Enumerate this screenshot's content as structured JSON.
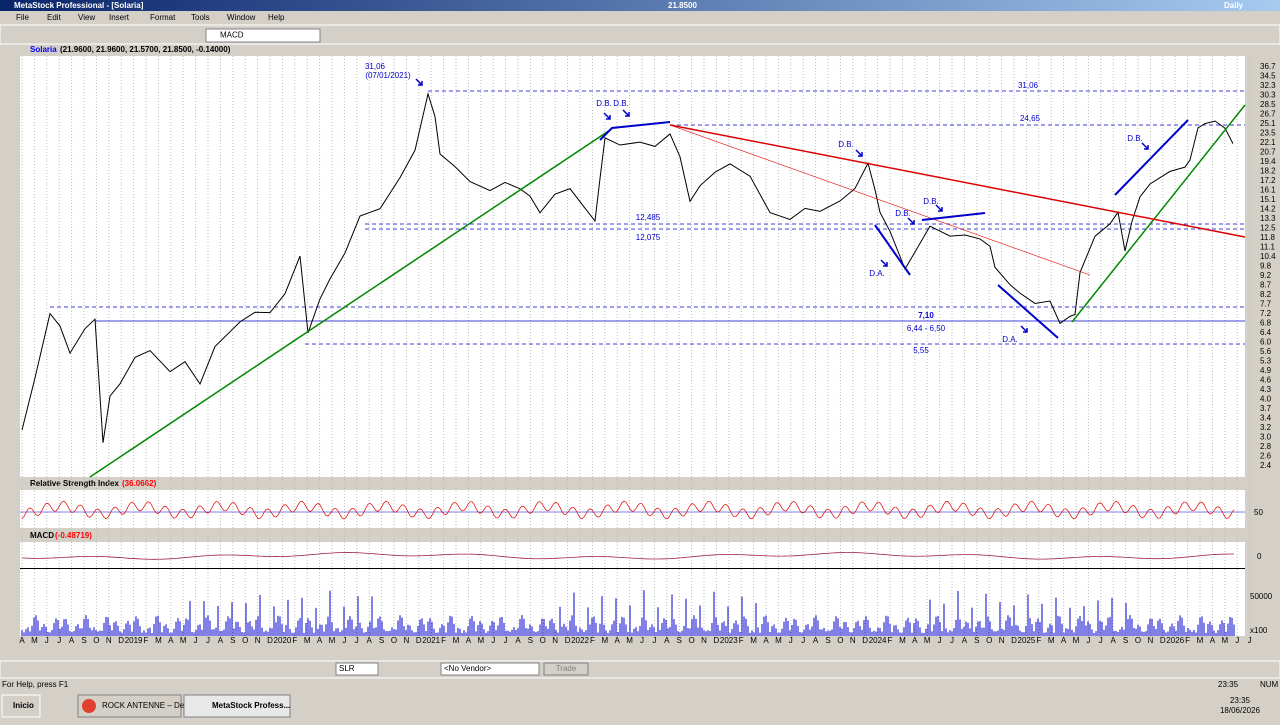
{
  "window": {
    "title": "MetaStock Professional - [Solaria]",
    "last_price": "21.8500",
    "period": "Daily"
  },
  "menu": [
    "File",
    "Edit",
    "View",
    "Insert",
    "Format",
    "Tools",
    "Window",
    "Help"
  ],
  "toolbar": {
    "indicator": "MACD"
  },
  "price_pane": {
    "symbol": "Solaria",
    "header": "(21.9600, 21.9600, 21.5700, 21.8500, -0.14000)",
    "axis": [
      "36.7",
      "34.5",
      "32.3",
      "30.3",
      "28.5",
      "26.7",
      "25.1",
      "23.5",
      "22.1",
      "20.7",
      "19.4",
      "18.2",
      "17.2",
      "16.1",
      "15.1",
      "14.2",
      "13.3",
      "12.5",
      "11.8",
      "11.1",
      "10.4",
      "9.8",
      "9.2",
      "8.7",
      "8.2",
      "7.7",
      "7.2",
      "6.8",
      "6.4",
      "6.0",
      "5.6",
      "5.3",
      "4.9",
      "4.6",
      "4.3",
      "4.0",
      "3.7",
      "3.4",
      "3.2",
      "3.0",
      "2.8",
      "2.6",
      "2.4"
    ],
    "annotations": [
      "31,06",
      "(07/01/2021)",
      "D.B.",
      "D.B.",
      "12,485",
      "12,075",
      "D.B.",
      "D.B.",
      "D.B.",
      "D.A.",
      "7,10",
      "6,44 - 6,50",
      "5,55",
      "D.A.",
      "D.B.",
      "31,06",
      "24,65"
    ]
  },
  "rsi_pane": {
    "name": "Relative Strength Index",
    "value": "(36.0662)",
    "axis": "50"
  },
  "macd_pane": {
    "name": "MACD",
    "value": "(-0.48719)",
    "axis": "0"
  },
  "volume_pane": {
    "axis": "50000",
    "scale": "x100"
  },
  "x_axis": [
    "A",
    "M",
    "J",
    "J",
    "A",
    "S",
    "O",
    "N",
    "D",
    "2019",
    "F",
    "M",
    "A",
    "M",
    "J",
    "J",
    "A",
    "S",
    "O",
    "N",
    "D",
    "2020",
    "F",
    "M",
    "A",
    "M",
    "J",
    "J",
    "A",
    "S",
    "O",
    "N",
    "D",
    "2021",
    "F",
    "M",
    "A",
    "M",
    "J",
    "J",
    "A",
    "S",
    "O",
    "N",
    "D",
    "2022",
    "F",
    "M",
    "A",
    "M",
    "J",
    "J",
    "A",
    "S",
    "O",
    "N",
    "D",
    "2023",
    "F",
    "M",
    "A",
    "M",
    "J",
    "J",
    "A",
    "S",
    "O",
    "N",
    "D",
    "2024",
    "F",
    "M",
    "A",
    "M",
    "J",
    "J",
    "A",
    "S",
    "O",
    "N",
    "D",
    "2025",
    "F",
    "M",
    "A",
    "M",
    "J",
    "J",
    "A",
    "S",
    "O",
    "N",
    "D",
    "2026",
    "F",
    "M",
    "A",
    "M",
    "J",
    "J"
  ],
  "bottom_toolbar": {
    "symbol": "SLR",
    "vendor": "<No Vendor>",
    "trade": "Trade"
  },
  "status": {
    "help": "For Help, press F1",
    "time": "23:35",
    "num": "NUM"
  },
  "taskbar": {
    "start": "Inicio",
    "tasks": [
      "ROCK ANTENNE – De...",
      "MetaStock Profess..."
    ],
    "time": "23:35",
    "date": "18/06/2026"
  }
}
